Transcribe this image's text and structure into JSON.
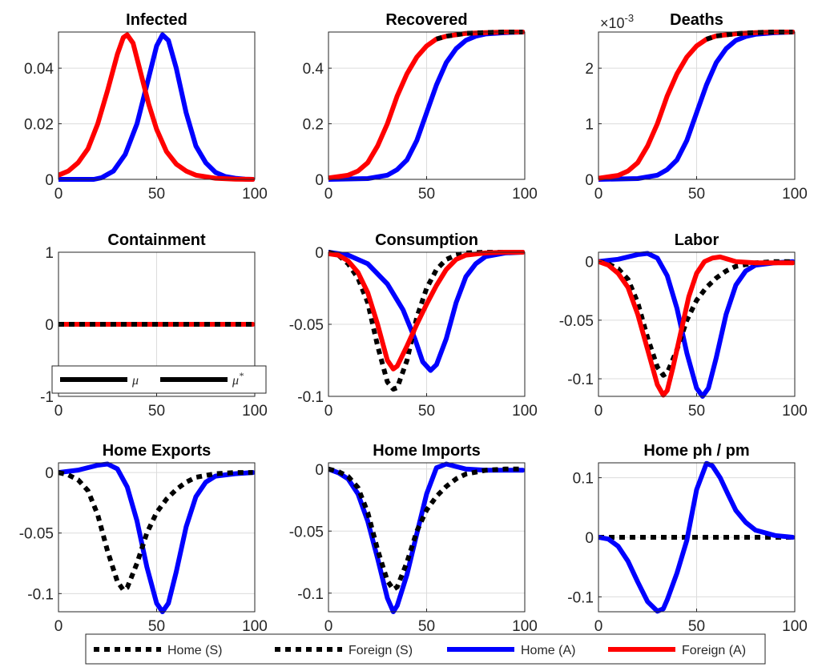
{
  "legend": {
    "items": [
      {
        "label": "Home (S)",
        "color": "#000000",
        "style": "dotted"
      },
      {
        "label": "Foreign (S)",
        "color": "#000000",
        "style": "dotted"
      },
      {
        "label": "Home (A)",
        "color": "#0000ff",
        "style": "solid"
      },
      {
        "label": "Foreign (A)",
        "color": "#ff0000",
        "style": "solid"
      }
    ]
  },
  "containment_legend": {
    "items": [
      {
        "label": "μ",
        "color": "#000000"
      },
      {
        "label": "μ*",
        "color": "#000000"
      }
    ]
  },
  "colors": {
    "home_a": "#0000ff",
    "foreign_a": "#ff0000",
    "scenario": "#000000",
    "grid": "#dcdcdc"
  },
  "chart_data": [
    {
      "type": "line",
      "title": "Infected",
      "xlim": [
        0,
        100
      ],
      "ylim": [
        0,
        0.053
      ],
      "xticks": [
        0,
        50,
        100
      ],
      "yticks": [
        0,
        0.02,
        0.04
      ],
      "ytick_labels": [
        "0",
        "0.02",
        "0.04"
      ],
      "grid": true,
      "series": [
        {
          "style": "home_a",
          "x": [
            0,
            10,
            18,
            22,
            28,
            34,
            40,
            45,
            50,
            53,
            56,
            60,
            65,
            70,
            75,
            80,
            85,
            90,
            95,
            99
          ],
          "y": [
            0,
            0,
            0,
            0.0006,
            0.003,
            0.009,
            0.02,
            0.034,
            0.048,
            0.052,
            0.05,
            0.04,
            0.024,
            0.012,
            0.006,
            0.0025,
            0.001,
            0.0004,
            0.0001,
            0
          ]
        },
        {
          "style": "foreign_a",
          "x": [
            0,
            5,
            10,
            15,
            20,
            25,
            30,
            33,
            35,
            38,
            42,
            46,
            50,
            55,
            60,
            65,
            70,
            80,
            90,
            99
          ],
          "y": [
            0.0015,
            0.003,
            0.006,
            0.011,
            0.02,
            0.032,
            0.045,
            0.051,
            0.052,
            0.049,
            0.038,
            0.027,
            0.018,
            0.01,
            0.0055,
            0.003,
            0.0015,
            0.0004,
            0.0001,
            0
          ]
        }
      ]
    },
    {
      "type": "line",
      "title": "Recovered",
      "xlim": [
        0,
        100
      ],
      "ylim": [
        0,
        0.53
      ],
      "xticks": [
        0,
        50,
        100
      ],
      "yticks": [
        0,
        0.2,
        0.4
      ],
      "ytick_labels": [
        "0",
        "0.2",
        "0.4"
      ],
      "grid": true,
      "series": [
        {
          "style": "home_a",
          "x": [
            0,
            20,
            30,
            35,
            40,
            45,
            50,
            55,
            60,
            65,
            70,
            75,
            80,
            90,
            99
          ],
          "y": [
            0,
            0.003,
            0.015,
            0.035,
            0.07,
            0.14,
            0.24,
            0.34,
            0.42,
            0.47,
            0.5,
            0.515,
            0.523,
            0.528,
            0.53
          ]
        },
        {
          "style": "foreign_a",
          "x": [
            0,
            10,
            15,
            20,
            25,
            30,
            35,
            40,
            45,
            50,
            55,
            60,
            70,
            80,
            90,
            99
          ],
          "y": [
            0.005,
            0.015,
            0.03,
            0.06,
            0.12,
            0.2,
            0.3,
            0.38,
            0.44,
            0.48,
            0.505,
            0.515,
            0.525,
            0.528,
            0.53,
            0.53
          ]
        },
        {
          "style": "dotted",
          "x": [
            55,
            60,
            70,
            80,
            90,
            99
          ],
          "y": [
            0.505,
            0.515,
            0.525,
            0.528,
            0.53,
            0.53
          ]
        }
      ]
    },
    {
      "type": "line",
      "title": "Deaths",
      "exponent_label": "×10-3",
      "xlim": [
        0,
        100
      ],
      "ylim": [
        0,
        2.65
      ],
      "xticks": [
        0,
        50,
        100
      ],
      "yticks": [
        0,
        1,
        2
      ],
      "ytick_labels": [
        "0",
        "1",
        "2"
      ],
      "grid": true,
      "series": [
        {
          "style": "home_a",
          "x": [
            0,
            20,
            30,
            35,
            40,
            45,
            50,
            55,
            60,
            65,
            70,
            75,
            80,
            90,
            99
          ],
          "y": [
            0,
            0.015,
            0.075,
            0.175,
            0.35,
            0.7,
            1.2,
            1.7,
            2.1,
            2.35,
            2.5,
            2.57,
            2.61,
            2.64,
            2.65
          ]
        },
        {
          "style": "foreign_a",
          "x": [
            0,
            10,
            15,
            20,
            25,
            30,
            35,
            40,
            45,
            50,
            55,
            60,
            70,
            80,
            90,
            99
          ],
          "y": [
            0.02,
            0.07,
            0.15,
            0.3,
            0.6,
            1.0,
            1.5,
            1.9,
            2.2,
            2.4,
            2.52,
            2.58,
            2.62,
            2.64,
            2.65,
            2.65
          ]
        },
        {
          "style": "dotted",
          "x": [
            55,
            60,
            70,
            80,
            90,
            99
          ],
          "y": [
            2.52,
            2.58,
            2.62,
            2.64,
            2.65,
            2.65
          ]
        }
      ]
    },
    {
      "type": "line",
      "title": "Containment",
      "xlim": [
        0,
        100
      ],
      "ylim": [
        -1,
        1
      ],
      "xticks": [
        0,
        50,
        100
      ],
      "yticks": [
        -1,
        0,
        1
      ],
      "ytick_labels": [
        "-1",
        "0",
        "1"
      ],
      "grid": true,
      "series": [
        {
          "style": "foreign_a",
          "x": [
            0,
            99
          ],
          "y": [
            0,
            0
          ]
        },
        {
          "style": "dotted",
          "x": [
            0,
            99
          ],
          "y": [
            0,
            0
          ]
        }
      ]
    },
    {
      "type": "line",
      "title": "Consumption",
      "xlim": [
        0,
        100
      ],
      "ylim": [
        -0.1,
        0
      ],
      "xticks": [
        0,
        50,
        100
      ],
      "yticks": [
        -0.1,
        -0.05,
        0
      ],
      "ytick_labels": [
        "-0.1",
        "-0.05",
        "0"
      ],
      "grid": true,
      "series": [
        {
          "style": "home_a",
          "x": [
            0,
            10,
            20,
            30,
            38,
            44,
            48,
            52,
            55,
            60,
            65,
            70,
            75,
            80,
            90,
            99
          ],
          "y": [
            0,
            -0.002,
            -0.008,
            -0.022,
            -0.04,
            -0.06,
            -0.076,
            -0.082,
            -0.078,
            -0.06,
            -0.035,
            -0.017,
            -0.008,
            -0.003,
            -0.0005,
            0
          ]
        },
        {
          "style": "dotted",
          "x": [
            0,
            5,
            10,
            15,
            20,
            25,
            30,
            33,
            35,
            40,
            45,
            50,
            55,
            60,
            65,
            70,
            80,
            90,
            99
          ],
          "y": [
            0,
            -0.002,
            -0.008,
            -0.018,
            -0.035,
            -0.065,
            -0.09,
            -0.095,
            -0.094,
            -0.075,
            -0.045,
            -0.025,
            -0.012,
            -0.005,
            -0.002,
            -0.0005,
            0,
            0,
            0
          ]
        },
        {
          "style": "foreign_a",
          "x": [
            0,
            5,
            10,
            15,
            20,
            25,
            30,
            33,
            35,
            40,
            45,
            50,
            55,
            60,
            65,
            70,
            80,
            90,
            99
          ],
          "y": [
            -0.001,
            -0.002,
            -0.006,
            -0.014,
            -0.028,
            -0.05,
            -0.075,
            -0.081,
            -0.079,
            -0.065,
            -0.05,
            -0.036,
            -0.023,
            -0.012,
            -0.005,
            -0.002,
            -0.0005,
            0,
            0
          ]
        }
      ]
    },
    {
      "type": "line",
      "title": "Labor",
      "xlim": [
        0,
        100
      ],
      "ylim": [
        -0.115,
        0.008
      ],
      "xticks": [
        0,
        50,
        100
      ],
      "yticks": [
        -0.1,
        -0.05,
        0
      ],
      "ytick_labels": [
        "-0.1",
        "-0.05",
        "0"
      ],
      "grid": true,
      "series": [
        {
          "style": "home_a",
          "x": [
            0,
            10,
            20,
            25,
            30,
            35,
            40,
            45,
            50,
            53,
            56,
            60,
            65,
            70,
            75,
            80,
            90,
            99
          ],
          "y": [
            0,
            0.002,
            0.006,
            0.007,
            0.003,
            -0.012,
            -0.04,
            -0.078,
            -0.108,
            -0.115,
            -0.108,
            -0.082,
            -0.045,
            -0.02,
            -0.008,
            -0.003,
            -0.001,
            0
          ]
        },
        {
          "style": "dotted",
          "x": [
            0,
            5,
            10,
            15,
            20,
            25,
            30,
            33,
            35,
            40,
            45,
            50,
            55,
            60,
            65,
            70,
            80,
            90,
            99
          ],
          "y": [
            0,
            -0.002,
            -0.006,
            -0.015,
            -0.035,
            -0.065,
            -0.09,
            -0.097,
            -0.095,
            -0.075,
            -0.05,
            -0.033,
            -0.022,
            -0.014,
            -0.008,
            -0.004,
            -0.001,
            0,
            0
          ]
        },
        {
          "style": "foreign_a",
          "x": [
            0,
            5,
            10,
            15,
            20,
            25,
            30,
            33,
            35,
            38,
            42,
            46,
            50,
            54,
            58,
            62,
            66,
            70,
            80,
            90,
            99
          ],
          "y": [
            0,
            -0.003,
            -0.01,
            -0.022,
            -0.045,
            -0.075,
            -0.105,
            -0.114,
            -0.11,
            -0.09,
            -0.06,
            -0.03,
            -0.01,
            0.0,
            0.003,
            0.004,
            0.002,
            0,
            -0.001,
            -0.001,
            -0.001
          ]
        }
      ]
    },
    {
      "type": "line",
      "title": "Home Exports",
      "xlim": [
        0,
        100
      ],
      "ylim": [
        -0.115,
        0.008
      ],
      "xticks": [
        0,
        50,
        100
      ],
      "yticks": [
        -0.1,
        -0.05,
        0
      ],
      "ytick_labels": [
        "-0.1",
        "-0.05",
        "0"
      ],
      "grid": true,
      "series": [
        {
          "style": "home_a",
          "x": [
            0,
            10,
            20,
            25,
            30,
            35,
            40,
            45,
            50,
            53,
            56,
            60,
            65,
            70,
            75,
            80,
            90,
            99
          ],
          "y": [
            0,
            0.002,
            0.006,
            0.007,
            0.003,
            -0.012,
            -0.04,
            -0.078,
            -0.108,
            -0.115,
            -0.108,
            -0.082,
            -0.045,
            -0.02,
            -0.008,
            -0.003,
            -0.001,
            0
          ]
        },
        {
          "style": "dotted",
          "x": [
            0,
            5,
            10,
            15,
            20,
            25,
            30,
            33,
            35,
            40,
            45,
            50,
            55,
            60,
            65,
            70,
            80,
            90,
            99
          ],
          "y": [
            0,
            -0.002,
            -0.006,
            -0.015,
            -0.035,
            -0.065,
            -0.09,
            -0.097,
            -0.095,
            -0.075,
            -0.05,
            -0.033,
            -0.022,
            -0.014,
            -0.008,
            -0.004,
            -0.001,
            0,
            0
          ]
        }
      ]
    },
    {
      "type": "line",
      "title": "Home Imports",
      "xlim": [
        0,
        100
      ],
      "ylim": [
        -0.115,
        0.005
      ],
      "xticks": [
        0,
        50,
        100
      ],
      "yticks": [
        -0.1,
        -0.05,
        0
      ],
      "ytick_labels": [
        "-0.1",
        "-0.05",
        "0"
      ],
      "grid": true,
      "series": [
        {
          "style": "home_a",
          "x": [
            0,
            5,
            10,
            15,
            20,
            25,
            30,
            33,
            35,
            40,
            45,
            50,
            55,
            60,
            65,
            70,
            80,
            90,
            99
          ],
          "y": [
            0,
            -0.003,
            -0.008,
            -0.02,
            -0.042,
            -0.072,
            -0.104,
            -0.115,
            -0.11,
            -0.085,
            -0.052,
            -0.02,
            0.001,
            0.004,
            0.002,
            0,
            -0.001,
            -0.001,
            -0.001
          ]
        },
        {
          "style": "dotted",
          "x": [
            0,
            5,
            10,
            15,
            20,
            25,
            30,
            33,
            35,
            40,
            45,
            50,
            55,
            60,
            65,
            70,
            80,
            90,
            99
          ],
          "y": [
            0,
            -0.002,
            -0.006,
            -0.015,
            -0.035,
            -0.065,
            -0.09,
            -0.097,
            -0.095,
            -0.075,
            -0.05,
            -0.033,
            -0.022,
            -0.014,
            -0.008,
            -0.004,
            -0.001,
            0,
            0
          ]
        }
      ]
    },
    {
      "type": "line",
      "title": "Home ph / pm",
      "xlim": [
        0,
        100
      ],
      "ylim": [
        -0.125,
        0.125
      ],
      "xticks": [
        0,
        50,
        100
      ],
      "yticks": [
        -0.1,
        0,
        0.1
      ],
      "ytick_labels": [
        "-0.1",
        "0",
        "0.1"
      ],
      "grid": true,
      "series": [
        {
          "style": "dotted",
          "x": [
            0,
            99
          ],
          "y": [
            0,
            0
          ]
        },
        {
          "style": "home_a",
          "x": [
            0,
            5,
            10,
            15,
            20,
            25,
            30,
            33,
            35,
            40,
            45,
            50,
            55,
            58,
            62,
            66,
            70,
            75,
            80,
            90,
            99
          ],
          "y": [
            0,
            -0.003,
            -0.015,
            -0.04,
            -0.075,
            -0.108,
            -0.124,
            -0.12,
            -0.105,
            -0.06,
            -0.005,
            0.08,
            0.124,
            0.12,
            0.1,
            0.072,
            0.045,
            0.025,
            0.012,
            0.003,
            0
          ]
        }
      ]
    }
  ]
}
